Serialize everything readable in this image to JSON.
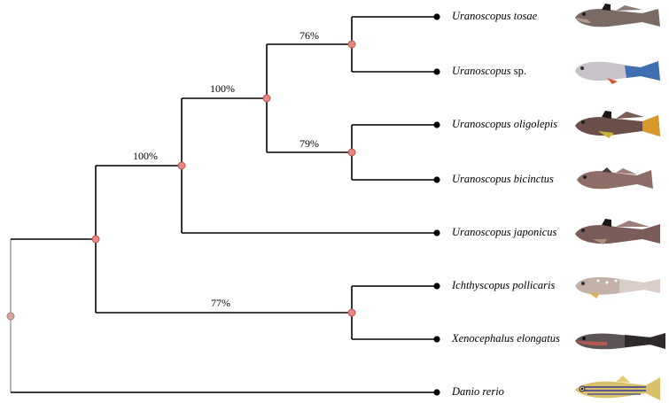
{
  "taxa": [
    {
      "genus": "Uranoscopus tosae",
      "rest": ""
    },
    {
      "genus": "Uranoscopus",
      "rest": " sp."
    },
    {
      "genus": "Uranoscopus oligolepis",
      "rest": ""
    },
    {
      "genus": "Uranoscopus bicinctus",
      "rest": ""
    },
    {
      "genus": "Uranoscopus japonicus",
      "rest": ""
    },
    {
      "genus": "Ichthyscopus pollicaris",
      "rest": ""
    },
    {
      "genus": "Xenocephalus elongatus",
      "rest": ""
    },
    {
      "genus": "Danio rerio",
      "rest": ""
    }
  ],
  "supports": {
    "tosae_sp": "76%",
    "uranoscopus_core": "100%",
    "oligolepis_bicinctus": "79%",
    "uranoscopus_all": "100%",
    "ichthyscopus_xenocephalus": "77%"
  },
  "colors": {
    "node": "#e8867f",
    "root_node": "#d7a59c",
    "branch": "#000000"
  },
  "fish_icons": [
    "uranoscopus-tosae-photo-icon",
    "uranoscopus-sp-photo-icon",
    "uranoscopus-oligolepis-photo-icon",
    "uranoscopus-bicinctus-photo-icon",
    "uranoscopus-japonicus-photo-icon",
    "ichthyscopus-pollicaris-photo-icon",
    "xenocephalus-elongatus-photo-icon",
    "danio-rerio-photo-icon"
  ]
}
